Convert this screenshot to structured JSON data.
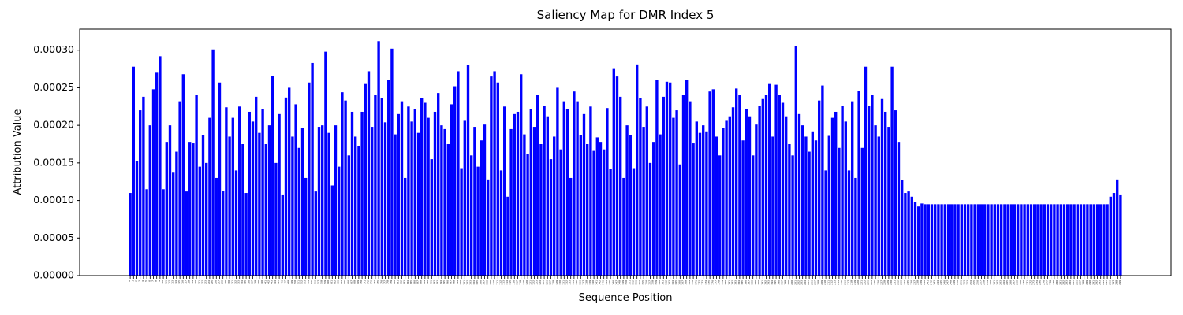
{
  "chart_data": {
    "type": "bar",
    "title": "Saliency Map for DMR Index 5",
    "xlabel": "Sequence Position",
    "ylabel": "Attribution Value",
    "color": "#0000ff",
    "ylim": [
      0,
      0.000328
    ],
    "yticks": [
      {
        "value": 0,
        "label": "0.00000"
      },
      {
        "value": 5e-05,
        "label": "0.00005"
      },
      {
        "value": 0.0001,
        "label": "0.00010"
      },
      {
        "value": 0.00015,
        "label": "0.00015"
      },
      {
        "value": 0.0002,
        "label": "0.00020"
      },
      {
        "value": 0.00025,
        "label": "0.00025"
      },
      {
        "value": 0.0003,
        "label": "0.00030"
      }
    ],
    "categories": [
      0,
      1,
      2,
      3,
      4,
      5,
      6,
      7,
      8,
      9,
      10,
      11,
      12,
      13,
      14,
      15,
      16,
      17,
      18,
      19,
      20,
      21,
      22,
      23,
      24,
      25,
      26,
      27,
      28,
      29,
      30,
      31,
      32,
      33,
      34,
      35,
      36,
      37,
      38,
      39,
      40,
      41,
      42,
      43,
      44,
      45,
      46,
      47,
      48,
      49,
      50,
      51,
      52,
      53,
      54,
      55,
      56,
      57,
      58,
      59,
      60,
      61,
      62,
      63,
      64,
      65,
      66,
      67,
      68,
      69,
      70,
      71,
      72,
      73,
      74,
      75,
      76,
      77,
      78,
      79,
      80,
      81,
      82,
      83,
      84,
      85,
      86,
      87,
      88,
      89,
      90,
      91,
      92,
      93,
      94,
      95,
      96,
      97,
      98,
      99,
      100,
      101,
      102,
      103,
      104,
      105,
      106,
      107,
      108,
      109,
      110,
      111,
      112,
      113,
      114,
      115,
      116,
      117,
      118,
      119,
      120,
      121,
      122,
      123,
      124,
      125,
      126,
      127,
      128,
      129,
      130,
      131,
      132,
      133,
      134,
      135,
      136,
      137,
      138,
      139,
      140,
      141,
      142,
      143,
      144,
      145,
      146,
      147,
      148,
      149,
      150,
      151,
      152,
      153,
      154,
      155,
      156,
      157,
      158,
      159,
      160,
      161,
      162,
      163,
      164,
      165,
      166,
      167,
      168,
      169,
      170,
      171,
      172,
      173,
      174,
      175,
      176,
      177,
      178,
      179,
      180,
      181,
      182,
      183,
      184,
      185,
      186,
      187,
      188,
      189,
      190,
      191,
      192,
      193,
      194,
      195,
      196,
      197,
      198,
      199,
      200,
      201,
      202,
      203,
      204,
      205,
      206,
      207,
      208,
      209,
      210,
      211,
      212,
      213,
      214,
      215,
      216,
      217,
      218,
      219,
      220,
      221,
      222,
      223,
      224,
      225,
      226,
      227,
      228,
      229,
      230,
      231,
      232,
      233,
      234,
      235,
      236,
      237,
      238,
      239,
      240,
      241,
      242,
      243,
      244,
      245,
      246,
      247,
      248,
      249,
      250,
      251,
      252,
      253,
      254,
      255,
      256,
      257,
      258,
      259,
      260,
      261,
      262,
      263,
      264,
      265,
      266,
      267,
      268,
      269,
      270,
      271,
      272,
      273,
      274,
      275,
      276,
      277,
      278,
      279,
      280,
      281,
      282,
      283,
      284,
      285,
      286,
      287,
      288,
      289,
      290,
      291,
      292,
      293,
      294,
      295,
      296,
      297,
      298,
      299
    ],
    "values": [
      0.00011,
      0.000278,
      0.000152,
      0.00022,
      0.000238,
      0.000115,
      0.0002,
      0.000248,
      0.00027,
      0.000292,
      0.000115,
      0.000178,
      0.0002,
      0.000137,
      0.000165,
      0.000232,
      0.000268,
      0.000112,
      0.000178,
      0.000176,
      0.00024,
      0.000145,
      0.000187,
      0.00015,
      0.00021,
      0.000301,
      0.00013,
      0.000257,
      0.000113,
      0.000224,
      0.000185,
      0.00021,
      0.00014,
      0.000225,
      0.000175,
      0.00011,
      0.000218,
      0.000205,
      0.000238,
      0.00019,
      0.000222,
      0.000175,
      0.0002,
      0.000266,
      0.00015,
      0.000215,
      0.000108,
      0.000237,
      0.00025,
      0.000185,
      0.000228,
      0.00017,
      0.000196,
      0.00013,
      0.000257,
      0.000283,
      0.000112,
      0.000198,
      0.0002,
      0.000298,
      0.00019,
      0.00012,
      0.0002,
      0.000145,
      0.000244,
      0.000233,
      0.00016,
      0.000218,
      0.000185,
      0.000172,
      0.000218,
      0.000255,
      0.000272,
      0.000198,
      0.00024,
      0.000312,
      0.000236,
      0.000204,
      0.00026,
      0.000302,
      0.000188,
      0.000215,
      0.000232,
      0.00013,
      0.000225,
      0.000205,
      0.000222,
      0.00019,
      0.000236,
      0.00023,
      0.00021,
      0.000155,
      0.000218,
      0.000243,
      0.0002,
      0.000195,
      0.000175,
      0.000228,
      0.000252,
      0.000272,
      0.000143,
      0.000206,
      0.00028,
      0.00016,
      0.000198,
      0.000145,
      0.00018,
      0.000201,
      0.000128,
      0.000265,
      0.000272,
      0.000257,
      0.00014,
      0.000225,
      0.000105,
      0.000195,
      0.000215,
      0.000218,
      0.000268,
      0.000188,
      0.000162,
      0.000222,
      0.000198,
      0.00024,
      0.000175,
      0.000226,
      0.000212,
      0.000155,
      0.000185,
      0.00025,
      0.000168,
      0.000232,
      0.000222,
      0.00013,
      0.000245,
      0.000232,
      0.000187,
      0.000215,
      0.000175,
      0.000225,
      0.000166,
      0.000184,
      0.000178,
      0.000168,
      0.000223,
      0.000142,
      0.000276,
      0.000265,
      0.000238,
      0.00013,
      0.0002,
      0.000187,
      0.000143,
      0.000281,
      0.000236,
      0.000198,
      0.000225,
      0.00015,
      0.000178,
      0.00026,
      0.000188,
      0.000238,
      0.000258,
      0.000257,
      0.00021,
      0.00022,
      0.000148,
      0.00024,
      0.00026,
      0.000232,
      0.000176,
      0.000205,
      0.00019,
      0.0002,
      0.000192,
      0.000245,
      0.000248,
      0.000185,
      0.00016,
      0.000197,
      0.000206,
      0.000212,
      0.000224,
      0.000249,
      0.00024,
      0.00018,
      0.000222,
      0.000212,
      0.00016,
      0.000201,
      0.000226,
      0.000235,
      0.00024,
      0.000255,
      0.000185,
      0.000254,
      0.00024,
      0.00023,
      0.000212,
      0.000175,
      0.00016,
      0.000305,
      0.000215,
      0.0002,
      0.000185,
      0.000165,
      0.000192,
      0.00018,
      0.000233,
      0.000253,
      0.00014,
      0.000186,
      0.00021,
      0.000218,
      0.00017,
      0.000226,
      0.000205,
      0.00014,
      0.000232,
      0.00013,
      0.000246,
      0.00017,
      0.000278,
      0.000226,
      0.00024,
      0.0002,
      0.000185,
      0.000235,
      0.000218,
      0.000198,
      0.000278,
      0.00022,
      0.000178,
      0.000127,
      0.00011,
      0.000112,
      0.000105,
      9.8e-05,
      9.2e-05,
      9.6e-05,
      9.5e-05,
      9.5e-05,
      9.5e-05,
      9.5e-05,
      9.5e-05,
      9.5e-05,
      9.5e-05,
      9.5e-05,
      9.5e-05,
      9.5e-05,
      9.5e-05,
      9.5e-05,
      9.5e-05,
      9.5e-05,
      9.5e-05,
      9.5e-05,
      9.5e-05,
      9.5e-05,
      9.5e-05,
      9.5e-05,
      9.5e-05,
      9.5e-05,
      9.5e-05,
      9.5e-05,
      9.5e-05,
      9.5e-05,
      9.5e-05,
      9.5e-05,
      9.5e-05,
      9.5e-05,
      9.5e-05,
      9.5e-05,
      9.5e-05,
      9.5e-05,
      9.5e-05,
      9.5e-05,
      9.5e-05,
      9.5e-05,
      9.5e-05,
      9.5e-05,
      9.5e-05,
      9.5e-05,
      9.5e-05,
      9.5e-05,
      9.5e-05,
      9.5e-05,
      9.5e-05,
      9.5e-05,
      9.5e-05,
      9.5e-05,
      9.5e-05,
      9.5e-05,
      9.5e-05,
      9.5e-05,
      9.5e-05,
      9.5e-05,
      0.000105,
      0.00011,
      0.000128,
      0.000108
    ]
  }
}
